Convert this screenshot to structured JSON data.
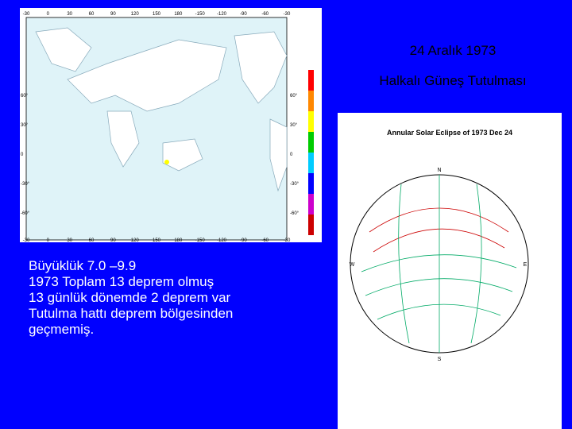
{
  "title": {
    "lines": [
      "24 Aralık 1973",
      "Halkalı Güneş Tutulması"
    ]
  },
  "body": {
    "lines": [
      "Büyüklük 7.0 –9.9",
      "1973 Toplam 13 deprem olmuş",
      "13 günlük dönemde 2 deprem var",
      "Tutulma hattı deprem bölgesinden",
      "geçmemiş."
    ]
  },
  "map": {
    "lon_labels": [
      "-30",
      "0",
      "30",
      "60",
      "90",
      "120",
      "150",
      "180",
      "-150",
      "-120",
      "-90",
      "-60",
      "-30"
    ],
    "lat_labels": [
      "60°",
      "30°",
      "0",
      "-30°",
      "-60°"
    ]
  },
  "eclipse_figure": {
    "title": "Annular Solar Eclipse of 1973 Dec 24",
    "compass": [
      "N",
      "W",
      "E",
      "S"
    ]
  }
}
